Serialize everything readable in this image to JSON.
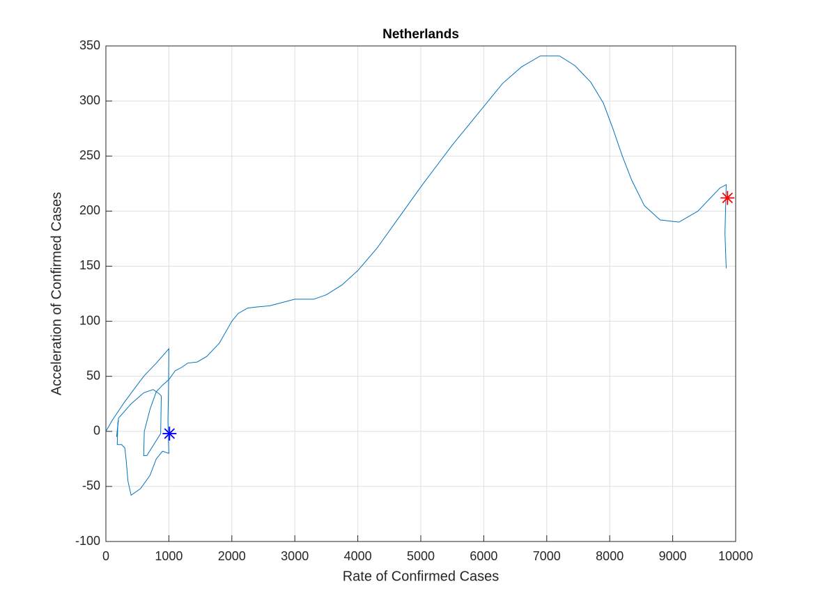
{
  "chart_data": {
    "type": "line",
    "title": "Netherlands",
    "xlabel": "Rate of Confirmed Cases",
    "ylabel": "Acceleration of Confirmed Cases",
    "xlim": [
      0,
      10000
    ],
    "xticks": [
      0,
      1000,
      2000,
      3000,
      4000,
      5000,
      6000,
      7000,
      8000,
      9000,
      10000
    ],
    "ylim": [
      -100,
      350
    ],
    "yticks": [
      -100,
      -50,
      0,
      50,
      100,
      150,
      200,
      250,
      300,
      350
    ],
    "grid": true,
    "series": [
      {
        "color": "#0072bd",
        "marker": "none",
        "x": [
          0,
          100,
          300,
          600,
          800,
          1000,
          995,
          985,
          1000,
          900,
          800,
          700,
          550,
          400,
          350,
          320,
          300,
          250,
          180,
          190,
          200,
          170,
          200,
          400,
          600,
          750,
          850,
          880,
          870,
          650,
          600,
          610,
          700,
          800,
          900,
          1000,
          1100,
          1200,
          1300,
          1450,
          1600,
          1800,
          2000,
          2100,
          2250,
          2400,
          2600,
          2800,
          3000,
          3300,
          3500,
          3750,
          4000,
          4300,
          4600,
          5000,
          5500,
          6000,
          6300,
          6600,
          6900,
          7200,
          7450,
          7700,
          7900,
          8050,
          8200,
          8350,
          8550,
          8800,
          9100,
          9400,
          9600,
          9750,
          9850,
          9830,
          9850
        ],
        "values": [
          0,
          10,
          27,
          50,
          62,
          75,
          40,
          10,
          -20,
          -18,
          -25,
          -40,
          -52,
          -58,
          -45,
          -25,
          -15,
          -12,
          -12,
          8,
          10,
          -5,
          12,
          25,
          35,
          38,
          34,
          32,
          -2,
          -22,
          -22,
          0,
          20,
          36,
          42,
          47,
          55,
          58,
          62,
          63,
          68,
          80,
          100,
          107,
          112,
          113,
          114,
          117,
          120,
          120,
          124,
          133,
          146,
          166,
          190,
          222,
          260,
          295,
          316,
          331,
          341,
          341,
          332,
          317,
          298,
          275,
          250,
          228,
          205,
          192,
          190,
          200,
          212,
          221,
          224,
          180,
          148
        ]
      },
      {
        "color": "#0000ff",
        "marker": "asterisk",
        "x": [
          1010
        ],
        "values": [
          -2
        ]
      },
      {
        "color": "#ff0000",
        "marker": "asterisk",
        "x": [
          9870
        ],
        "values": [
          212
        ]
      }
    ]
  }
}
